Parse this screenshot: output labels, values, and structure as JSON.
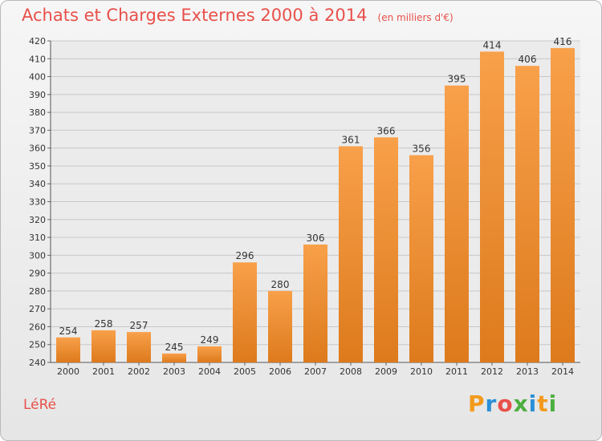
{
  "header": {
    "title": "Achats et Charges Externes 2000 à 2014",
    "subtitle": "(en milliers d'€)"
  },
  "footer": {
    "commune": "LéRé",
    "logo_text": "Proxiti"
  },
  "colors": {
    "title": "#e8504a",
    "bar_top": "#f8a04a",
    "bar_bottom": "#dd7a1c",
    "logo": [
      "#f39a1c",
      "#2a8fd6",
      "#e8504a",
      "#4caf3f",
      "#2a8fd6",
      "#f39a1c",
      "#4caf3f"
    ]
  },
  "chart_data": {
    "type": "bar",
    "title": "Achats et Charges Externes 2000 à 2014",
    "subtitle": "(en milliers d'€)",
    "categories": [
      "2000",
      "2001",
      "2002",
      "2003",
      "2004",
      "2005",
      "2006",
      "2007",
      "2008",
      "2009",
      "2010",
      "2011",
      "2012",
      "2013",
      "2014"
    ],
    "values": [
      254,
      258,
      257,
      245,
      249,
      296,
      280,
      306,
      361,
      366,
      356,
      395,
      414,
      406,
      416
    ],
    "ylim": [
      240,
      420
    ],
    "yticks": [
      240,
      250,
      260,
      270,
      280,
      290,
      300,
      310,
      320,
      330,
      340,
      350,
      360,
      370,
      380,
      390,
      400,
      410,
      420
    ],
    "grid": true,
    "xlabel": "",
    "ylabel": ""
  }
}
